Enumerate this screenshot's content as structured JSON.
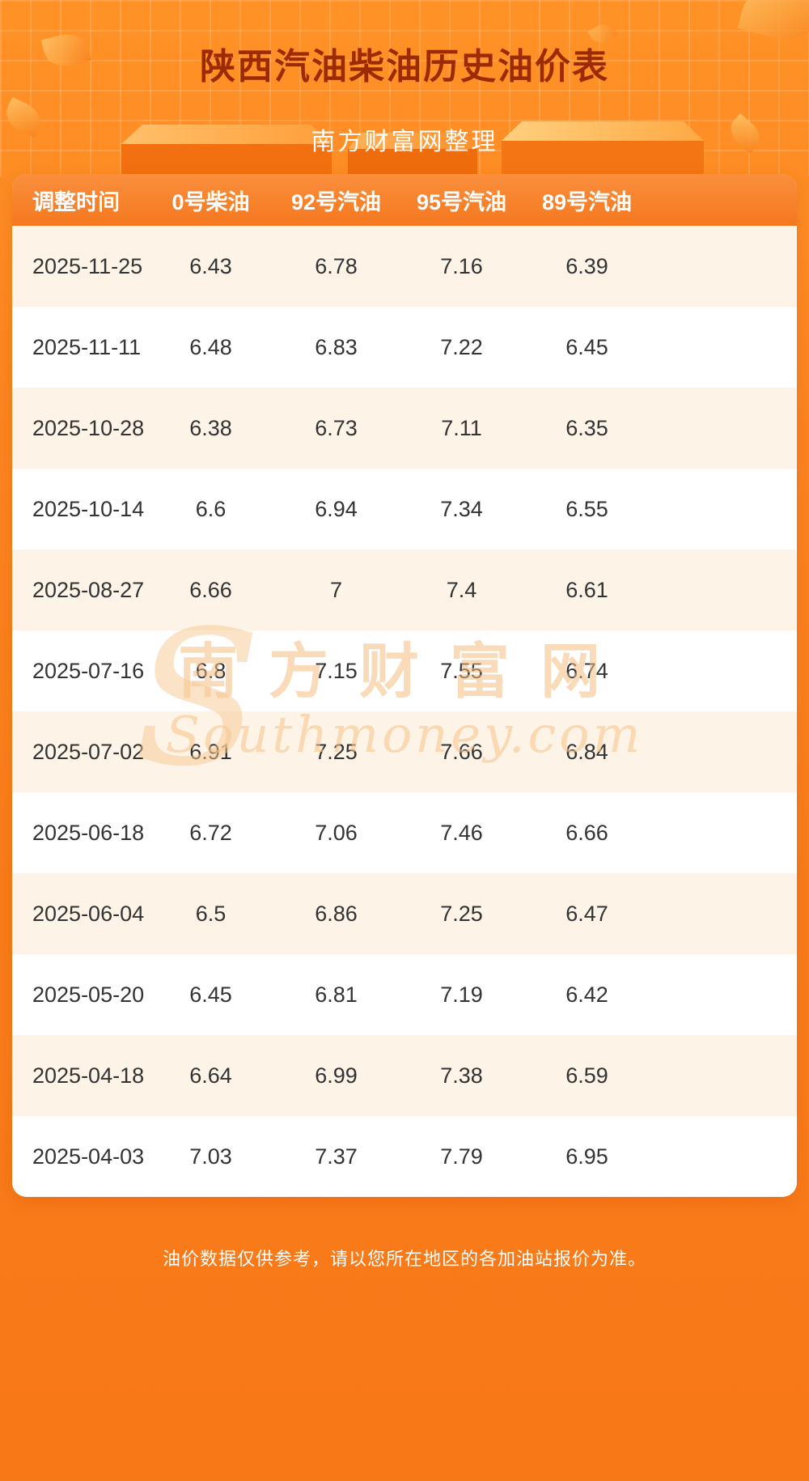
{
  "page": {
    "title": "陕西汽油柴油历史油价表",
    "subtitle": "南方财富网整理",
    "footer": "油价数据仅供参考，请以您所在地区的各加油站报价为准。",
    "watermark_s": "S",
    "watermark_cn": "南方财富网",
    "watermark_en": "Southmoney.com"
  },
  "table": {
    "headers": [
      "调整时间",
      "0号柴油",
      "92号汽油",
      "95号汽油",
      "89号汽油"
    ],
    "rows": [
      {
        "date": "2025-11-25",
        "values": [
          "6.43",
          "6.78",
          "7.16",
          "6.39"
        ]
      },
      {
        "date": "2025-11-11",
        "values": [
          "6.48",
          "6.83",
          "7.22",
          "6.45"
        ]
      },
      {
        "date": "2025-10-28",
        "values": [
          "6.38",
          "6.73",
          "7.11",
          "6.35"
        ]
      },
      {
        "date": "2025-10-14",
        "values": [
          "6.6",
          "6.94",
          "7.34",
          "6.55"
        ]
      },
      {
        "date": "2025-08-27",
        "values": [
          "6.66",
          "7",
          "7.4",
          "6.61"
        ]
      },
      {
        "date": "2025-07-16",
        "values": [
          "6.8",
          "7.15",
          "7.55",
          "6.74"
        ]
      },
      {
        "date": "2025-07-02",
        "values": [
          "6.91",
          "7.25",
          "7.66",
          "6.84"
        ]
      },
      {
        "date": "2025-06-18",
        "values": [
          "6.72",
          "7.06",
          "7.46",
          "6.66"
        ]
      },
      {
        "date": "2025-06-04",
        "values": [
          "6.5",
          "6.86",
          "7.25",
          "6.47"
        ]
      },
      {
        "date": "2025-05-20",
        "values": [
          "6.45",
          "6.81",
          "7.19",
          "6.42"
        ]
      },
      {
        "date": "2025-04-18",
        "values": [
          "6.64",
          "6.99",
          "7.38",
          "6.59"
        ]
      },
      {
        "date": "2025-04-03",
        "values": [
          "7.03",
          "7.37",
          "7.79",
          "6.95"
        ]
      }
    ]
  },
  "chart_data": {
    "type": "table",
    "title": "陕西汽油柴油历史油价表",
    "subtitle": "南方财富网整理",
    "columns": [
      "调整时间",
      "0号柴油",
      "92号汽油",
      "95号汽油",
      "89号汽油"
    ],
    "rows": [
      [
        "2025-11-25",
        6.43,
        6.78,
        7.16,
        6.39
      ],
      [
        "2025-11-11",
        6.48,
        6.83,
        7.22,
        6.45
      ],
      [
        "2025-10-28",
        6.38,
        6.73,
        7.11,
        6.35
      ],
      [
        "2025-10-14",
        6.6,
        6.94,
        7.34,
        6.55
      ],
      [
        "2025-08-27",
        6.66,
        7,
        7.4,
        6.61
      ],
      [
        "2025-07-16",
        6.8,
        7.15,
        7.55,
        6.74
      ],
      [
        "2025-07-02",
        6.91,
        7.25,
        7.66,
        6.84
      ],
      [
        "2025-06-18",
        6.72,
        7.06,
        7.46,
        6.66
      ],
      [
        "2025-06-04",
        6.5,
        6.86,
        7.25,
        6.47
      ],
      [
        "2025-05-20",
        6.45,
        6.81,
        7.19,
        6.42
      ],
      [
        "2025-04-18",
        6.64,
        6.99,
        7.38,
        6.59
      ],
      [
        "2025-04-03",
        7.03,
        7.37,
        7.79,
        6.95
      ]
    ]
  },
  "colors": {
    "background_orange": "#fb8420",
    "title_red": "#9c2b04",
    "header_orange": "#f5781f",
    "row_cream": "#fdf3e6",
    "row_white": "#ffffff",
    "text_dark": "#333333",
    "watermark_tan": "#f4bd81"
  }
}
